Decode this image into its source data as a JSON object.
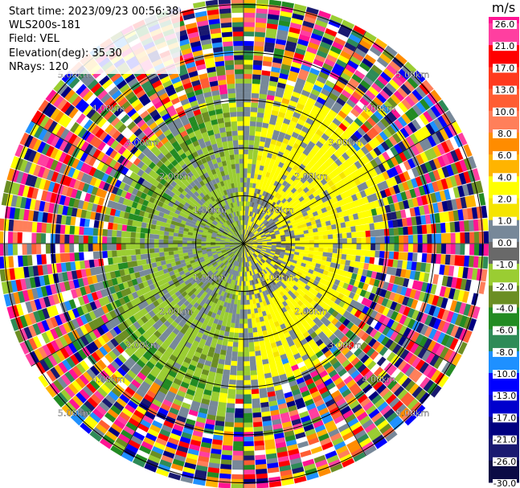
{
  "info": {
    "start_time": "Start time: 2023/09/23 00:56:38",
    "instrument": "WLS200s-181",
    "field": "Field: VEL",
    "elevation": "Elevation(deg): 35.30",
    "nrays": "NRays: 120"
  },
  "chart_data": {
    "type": "heatmap",
    "projection": "polar",
    "ring_labels": [
      "1.00km",
      "2.00km",
      "3.00km",
      "4.00km",
      "5.00km"
    ],
    "ring_label_values_km": [
      1,
      2,
      3,
      4,
      5
    ],
    "colorbar": {
      "unit": "m/s",
      "min": -30.0,
      "max": 30.0,
      "bins": [
        {
          "from": 21.0,
          "to": 26.0,
          "color": "#ff3fa0"
        },
        {
          "from": 17.0,
          "to": 21.0,
          "color": "#ff0000"
        },
        {
          "from": 13.0,
          "to": 17.0,
          "color": "#ff3a1e"
        },
        {
          "from": 10.0,
          "to": 13.0,
          "color": "#ff5d33"
        },
        {
          "from": 8.0,
          "to": 10.0,
          "color": "#ff7f5a"
        },
        {
          "from": 6.0,
          "to": 8.0,
          "color": "#ff8c00"
        },
        {
          "from": 4.0,
          "to": 6.0,
          "color": "#ffb400"
        },
        {
          "from": 2.0,
          "to": 4.0,
          "color": "#ffff00"
        },
        {
          "from": 1.0,
          "to": 2.0,
          "color": "#f5e400"
        },
        {
          "from": 0.0,
          "to": 1.0,
          "color": "#778899"
        },
        {
          "from": -1.0,
          "to": 0.0,
          "color": "#696969"
        },
        {
          "from": -2.0,
          "to": -1.0,
          "color": "#9acd32"
        },
        {
          "from": -4.0,
          "to": -2.0,
          "color": "#6b8e23"
        },
        {
          "from": -6.0,
          "to": -4.0,
          "color": "#228b22"
        },
        {
          "from": -8.0,
          "to": -6.0,
          "color": "#2e8b57"
        },
        {
          "from": -10.0,
          "to": -8.0,
          "color": "#1e90ff"
        },
        {
          "from": -13.0,
          "to": -10.0,
          "color": "#0000ff"
        },
        {
          "from": -17.0,
          "to": -13.0,
          "color": "#0000cd"
        },
        {
          "from": -21.0,
          "to": -17.0,
          "color": "#000080"
        },
        {
          "from": -26.0,
          "to": -21.0,
          "color": "#191970"
        },
        {
          "from": -30.0,
          "to": -26.0,
          "color": "#0b0b45"
        }
      ],
      "top_color": "#ff1493",
      "tick_labels": [
        "26.0",
        "21.0",
        "17.0",
        "13.0",
        "10.0",
        "8.0",
        "6.0",
        "4.0",
        "2.0",
        "1.0",
        "0.0",
        "-1.0",
        "-2.0",
        "-4.0",
        "-6.0",
        "-8.0",
        "-10.0",
        "-13.0",
        "-17.0",
        "-21.0",
        "-26.0",
        "-30.0"
      ]
    },
    "noise_palette": [
      "#ff1493",
      "#ff3fa0",
      "#ff0000",
      "#ff8c00",
      "#ffff00",
      "#0000ff",
      "#000080",
      "#228b22",
      "#9acd32",
      "#ffffff",
      "#ff7f5a",
      "#1e90ff",
      "#ffb400",
      "#6b8e23",
      "#191970",
      "#2e8b57",
      "#778899",
      "#ff5d33"
    ],
    "gray_color": "#778899",
    "yellow_color": "#ffff00",
    "green_light": "#9acd32",
    "green_dark": "#228b22",
    "olive": "#6b8e23"
  }
}
